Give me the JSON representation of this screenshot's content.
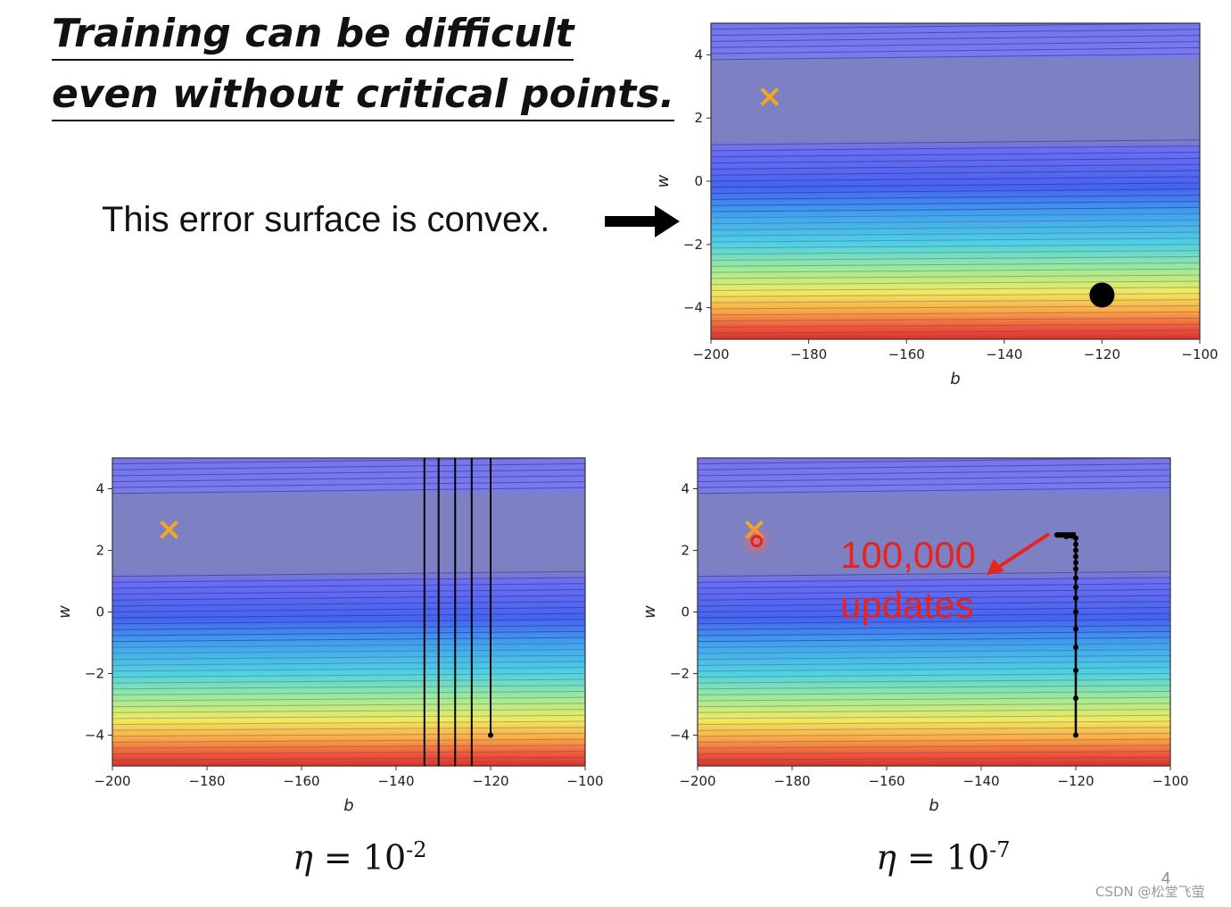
{
  "slide": {
    "title_line1": "Training can be difficult",
    "title_line2": "even without critical points.",
    "convex_text": "This error surface is convex.",
    "page_number": "4",
    "watermark": "CSDN @松堂飞萤"
  },
  "annotation": {
    "line1": "100,000",
    "line2": "updates",
    "color": "#e8231c"
  },
  "captions": {
    "left": {
      "symbol": "η",
      "equals": " = 10",
      "exponent": "-2"
    },
    "right": {
      "symbol": "η",
      "equals": " = 10",
      "exponent": "-7"
    }
  },
  "colors": {
    "optimum_marker": "#f5a623",
    "path": "#000000",
    "highlight": "#e8231c"
  },
  "chart_data": [
    {
      "type": "contour",
      "xlabel": "b",
      "ylabel": "w",
      "xlim": [
        -200,
        -100
      ],
      "ylim": [
        -5,
        5
      ],
      "xticks": [
        -200,
        -180,
        -160,
        -140,
        -120,
        -100
      ],
      "yticks": [
        -4,
        -2,
        0,
        2,
        4
      ],
      "xtick_labels": [
        "−200",
        "−180",
        "−160",
        "−140",
        "−120",
        "−100"
      ],
      "ytick_labels": [
        "−4",
        "−2",
        "0",
        "2",
        "4"
      ],
      "colormap": "jet (blue = low loss, red = high loss)",
      "minimum": {
        "b": -188,
        "w": 2.67,
        "marker": "x"
      },
      "start_point": {
        "b": -120,
        "w": -3.6,
        "marker": "big-dot"
      },
      "path": []
    },
    {
      "type": "contour",
      "xlabel": "b",
      "ylabel": "w",
      "xlim": [
        -200,
        -100
      ],
      "ylim": [
        -5,
        5
      ],
      "xticks": [
        -200,
        -180,
        -160,
        -140,
        -120,
        -100
      ],
      "yticks": [
        -4,
        -2,
        0,
        2,
        4
      ],
      "xtick_labels": [
        "−200",
        "−180",
        "−160",
        "−140",
        "−120",
        "−100"
      ],
      "ytick_labels": [
        "−4",
        "−2",
        "0",
        "2",
        "4"
      ],
      "colormap": "jet (blue = low loss, red = high loss)",
      "minimum": {
        "b": -188,
        "w": 2.67,
        "marker": "x"
      },
      "learning_rate": "10^-2",
      "oscillation_b": [
        -120,
        -124,
        -127.5,
        -131,
        -134
      ],
      "start_point": {
        "b": -120,
        "w": -4
      }
    },
    {
      "type": "contour",
      "xlabel": "b",
      "ylabel": "w",
      "xlim": [
        -200,
        -100
      ],
      "ylim": [
        -5,
        5
      ],
      "xticks": [
        -200,
        -180,
        -160,
        -140,
        -120,
        -100
      ],
      "yticks": [
        -4,
        -2,
        0,
        2,
        4
      ],
      "xtick_labels": [
        "−200",
        "−180",
        "−160",
        "−140",
        "−120",
        "−100"
      ],
      "ytick_labels": [
        "−4",
        "−2",
        "0",
        "2",
        "4"
      ],
      "colormap": "jet (blue = low loss, red = high loss)",
      "minimum": {
        "b": -188,
        "w": 2.67,
        "marker": "x"
      },
      "learning_rate": "10^-7",
      "end_point": {
        "b": -187.5,
        "w": 2.3,
        "marker": "red-circle"
      },
      "path_points": [
        {
          "b": -120,
          "w": -4
        },
        {
          "b": -120,
          "w": -2.8
        },
        {
          "b": -120,
          "w": -1.9
        },
        {
          "b": -120,
          "w": -1.15
        },
        {
          "b": -120,
          "w": -0.55
        },
        {
          "b": -120,
          "w": 0
        },
        {
          "b": -120,
          "w": 0.45
        },
        {
          "b": -120,
          "w": 0.8
        },
        {
          "b": -120,
          "w": 1.1
        },
        {
          "b": -120,
          "w": 1.4
        },
        {
          "b": -120,
          "w": 1.6
        },
        {
          "b": -120,
          "w": 1.8
        },
        {
          "b": -120,
          "w": 2.0
        },
        {
          "b": -120,
          "w": 2.2
        },
        {
          "b": -120,
          "w": 2.4
        },
        {
          "b": -122,
          "w": 2.45
        },
        {
          "b": -124,
          "w": 2.5
        }
      ]
    }
  ]
}
